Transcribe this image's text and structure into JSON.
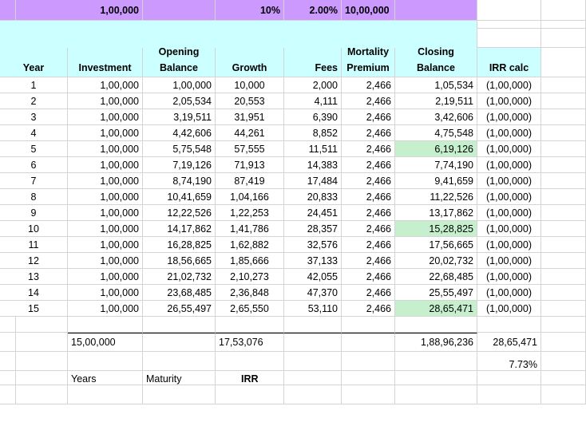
{
  "inputs": {
    "investment": "1,00,000",
    "growth_rate": "10%",
    "fee_rate": "2.00%",
    "sum_assured": "10,00,000"
  },
  "headers": {
    "year": "Year",
    "investment": "Investment",
    "opening_1": "Opening",
    "opening_2": "Balance",
    "growth": "Growth",
    "fees": "Fees",
    "mortality_1": "Mortality",
    "mortality_2": "Premium",
    "closing_1": "Closing",
    "closing_2": "Balance",
    "irr_calc": "IRR calc"
  },
  "rows": [
    {
      "year": "1",
      "investment": "1,00,000",
      "opening": "1,00,000",
      "growth": "10,000",
      "fees": "2,000",
      "mortality": "2,466",
      "closing": "1,05,534",
      "irr": "(1,00,000)",
      "hl": false
    },
    {
      "year": "2",
      "investment": "1,00,000",
      "opening": "2,05,534",
      "growth": "20,553",
      "fees": "4,111",
      "mortality": "2,466",
      "closing": "2,19,511",
      "irr": "(1,00,000)",
      "hl": false
    },
    {
      "year": "3",
      "investment": "1,00,000",
      "opening": "3,19,511",
      "growth": "31,951",
      "fees": "6,390",
      "mortality": "2,466",
      "closing": "3,42,606",
      "irr": "(1,00,000)",
      "hl": false
    },
    {
      "year": "4",
      "investment": "1,00,000",
      "opening": "4,42,606",
      "growth": "44,261",
      "fees": "8,852",
      "mortality": "2,466",
      "closing": "4,75,548",
      "irr": "(1,00,000)",
      "hl": false
    },
    {
      "year": "5",
      "investment": "1,00,000",
      "opening": "5,75,548",
      "growth": "57,555",
      "fees": "11,511",
      "mortality": "2,466",
      "closing": "6,19,126",
      "irr": "(1,00,000)",
      "hl": true
    },
    {
      "year": "6",
      "investment": "1,00,000",
      "opening": "7,19,126",
      "growth": "71,913",
      "fees": "14,383",
      "mortality": "2,466",
      "closing": "7,74,190",
      "irr": "(1,00,000)",
      "hl": false
    },
    {
      "year": "7",
      "investment": "1,00,000",
      "opening": "8,74,190",
      "growth": "87,419",
      "fees": "17,484",
      "mortality": "2,466",
      "closing": "9,41,659",
      "irr": "(1,00,000)",
      "hl": false
    },
    {
      "year": "8",
      "investment": "1,00,000",
      "opening": "10,41,659",
      "growth": "1,04,166",
      "fees": "20,833",
      "mortality": "2,466",
      "closing": "11,22,526",
      "irr": "(1,00,000)",
      "hl": false
    },
    {
      "year": "9",
      "investment": "1,00,000",
      "opening": "12,22,526",
      "growth": "1,22,253",
      "fees": "24,451",
      "mortality": "2,466",
      "closing": "13,17,862",
      "irr": "(1,00,000)",
      "hl": false
    },
    {
      "year": "10",
      "investment": "1,00,000",
      "opening": "14,17,862",
      "growth": "1,41,786",
      "fees": "28,357",
      "mortality": "2,466",
      "closing": "15,28,825",
      "irr": "(1,00,000)",
      "hl": true
    },
    {
      "year": "11",
      "investment": "1,00,000",
      "opening": "16,28,825",
      "growth": "1,62,882",
      "fees": "32,576",
      "mortality": "2,466",
      "closing": "17,56,665",
      "irr": "(1,00,000)",
      "hl": false
    },
    {
      "year": "12",
      "investment": "1,00,000",
      "opening": "18,56,665",
      "growth": "1,85,666",
      "fees": "37,133",
      "mortality": "2,466",
      "closing": "20,02,732",
      "irr": "(1,00,000)",
      "hl": false
    },
    {
      "year": "13",
      "investment": "1,00,000",
      "opening": "21,02,732",
      "growth": "2,10,273",
      "fees": "42,055",
      "mortality": "2,466",
      "closing": "22,68,485",
      "irr": "(1,00,000)",
      "hl": false
    },
    {
      "year": "14",
      "investment": "1,00,000",
      "opening": "23,68,485",
      "growth": "2,36,848",
      "fees": "47,370",
      "mortality": "2,466",
      "closing": "25,55,497",
      "irr": "(1,00,000)",
      "hl": false
    },
    {
      "year": "15",
      "investment": "1,00,000",
      "opening": "26,55,497",
      "growth": "2,65,550",
      "fees": "53,110",
      "mortality": "2,466",
      "closing": "28,65,471",
      "irr": "(1,00,000)",
      "hl": true
    }
  ],
  "totals": {
    "investment": "15,00,000",
    "growth": "17,53,076",
    "closing": "1,88,96,236",
    "irr": "28,65,471"
  },
  "irr_result": "7.73%",
  "labels": {
    "years": "Years",
    "maturity": "Maturity",
    "irr": "IRR"
  },
  "colors": {
    "input_band": "#cc99ff",
    "header_band": "#ccffff",
    "highlight": "#c6efce"
  }
}
